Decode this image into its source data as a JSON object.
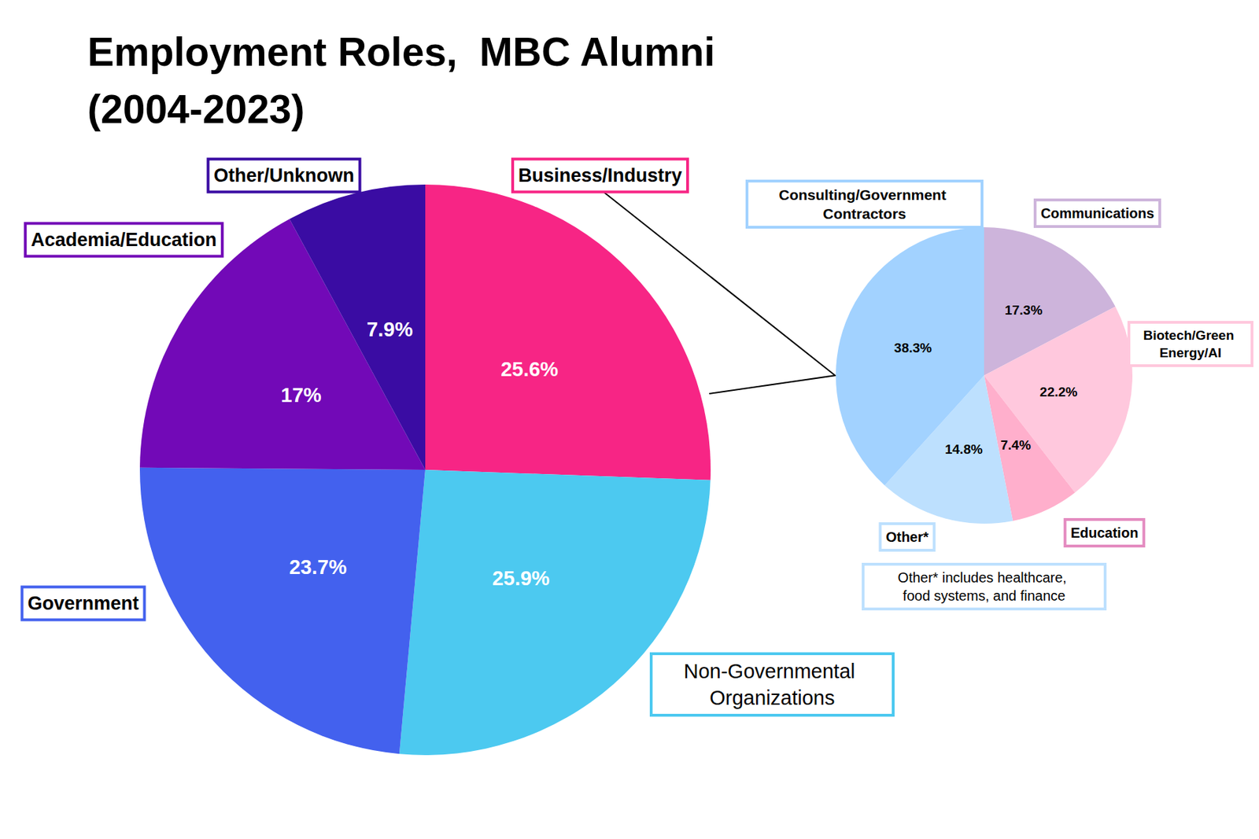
{
  "chart_data": [
    {
      "type": "pie",
      "title": "Employment Roles,  MBC Alumni\n(2004-2023)",
      "categories": [
        "Business/Industry",
        "Non-Governmental Organizations",
        "Government",
        "Academia/Education",
        "Other/Unknown"
      ],
      "values": [
        25.6,
        25.9,
        23.7,
        17,
        7.9
      ],
      "value_labels": [
        "25.6%",
        "25.9%",
        "23.7%",
        "17%",
        "7.9%"
      ],
      "colors": [
        "#f72585",
        "#4cc9f0",
        "#4361ee",
        "#7209b7",
        "#3a0ca3"
      ],
      "data_labels": true
    },
    {
      "type": "pie",
      "categories": [
        "Communications",
        "Biotech/Green Energy/AI",
        "Education",
        "Other*",
        "Consulting/Government Contractors"
      ],
      "values": [
        17.3,
        22.2,
        7.4,
        14.8,
        38.3
      ],
      "value_labels": [
        "17.3%",
        "22.2%",
        "7.4%",
        "14.8%",
        "38.3%"
      ],
      "colors": [
        "#cdb4db",
        "#ffc8dd",
        "#ffafcc",
        "#bde0fe",
        "#a2d2ff"
      ],
      "data_labels": true,
      "annotations": [
        "Other* includes healthcare, food systems, and finance"
      ]
    }
  ]
}
